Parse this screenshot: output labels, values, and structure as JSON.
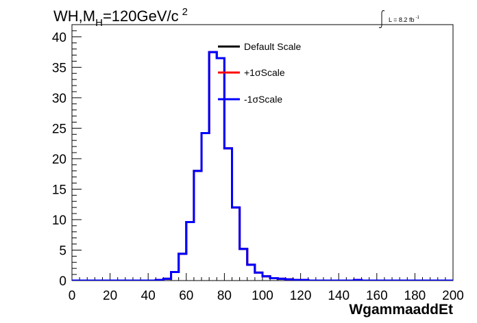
{
  "chart_data": {
    "type": "line",
    "title": {
      "prefix": "WH,M",
      "sub": "H",
      "main": "=120GeV/c",
      "sup": "2"
    },
    "lumi": {
      "label": "L = 8.2 fb",
      "sup": "-1"
    },
    "xlabel": "WgammaaddEt",
    "ylabel": "",
    "xlim": [
      0,
      200
    ],
    "ylim": [
      0,
      42
    ],
    "xticks": [
      0,
      20,
      40,
      60,
      80,
      100,
      120,
      140,
      160,
      180,
      200
    ],
    "yticks": [
      0,
      5,
      10,
      15,
      20,
      25,
      30,
      35,
      40
    ],
    "grid": false,
    "legend_position": "top-center",
    "bin_width": 4,
    "series": [
      {
        "name": "Default Scale",
        "color": "#000000",
        "values": [
          0,
          0,
          0,
          0,
          0,
          0,
          0,
          0,
          0,
          0,
          0,
          0.1,
          0.3,
          1.4,
          4.4,
          9.6,
          18.0,
          24.2,
          37.5,
          36.5,
          21.7,
          12.0,
          5.2,
          2.6,
          1.3,
          0.7,
          0.4,
          0.3,
          0.2,
          0.1,
          0.1,
          0,
          0,
          0,
          0,
          0,
          0,
          0.1,
          0,
          0,
          0,
          0,
          0,
          0,
          0,
          0,
          0,
          0,
          0,
          0
        ]
      },
      {
        "name": "+1σScale",
        "color": "#ff0000",
        "values": [
          0,
          0,
          0,
          0,
          0,
          0,
          0,
          0,
          0,
          0,
          0,
          0.1,
          0.3,
          1.4,
          4.4,
          9.6,
          18.0,
          24.2,
          37.5,
          36.5,
          21.7,
          12.0,
          5.2,
          2.6,
          1.3,
          0.7,
          0.4,
          0.3,
          0.2,
          0.1,
          0.1,
          0,
          0,
          0,
          0,
          0,
          0,
          0.1,
          0,
          0,
          0,
          0,
          0,
          0,
          0,
          0,
          0,
          0,
          0,
          0
        ]
      },
      {
        "name": "-1σScale",
        "color": "#0000ff",
        "values": [
          0,
          0,
          0,
          0,
          0,
          0,
          0,
          0,
          0,
          0,
          0,
          0.1,
          0.3,
          1.4,
          4.4,
          9.6,
          18.0,
          24.2,
          37.5,
          36.5,
          21.7,
          12.0,
          5.2,
          2.6,
          1.3,
          0.7,
          0.4,
          0.3,
          0.2,
          0.1,
          0.1,
          0,
          0,
          0,
          0,
          0,
          0,
          0.1,
          0,
          0,
          0,
          0,
          0,
          0,
          0,
          0,
          0,
          0,
          0,
          0
        ]
      }
    ]
  }
}
